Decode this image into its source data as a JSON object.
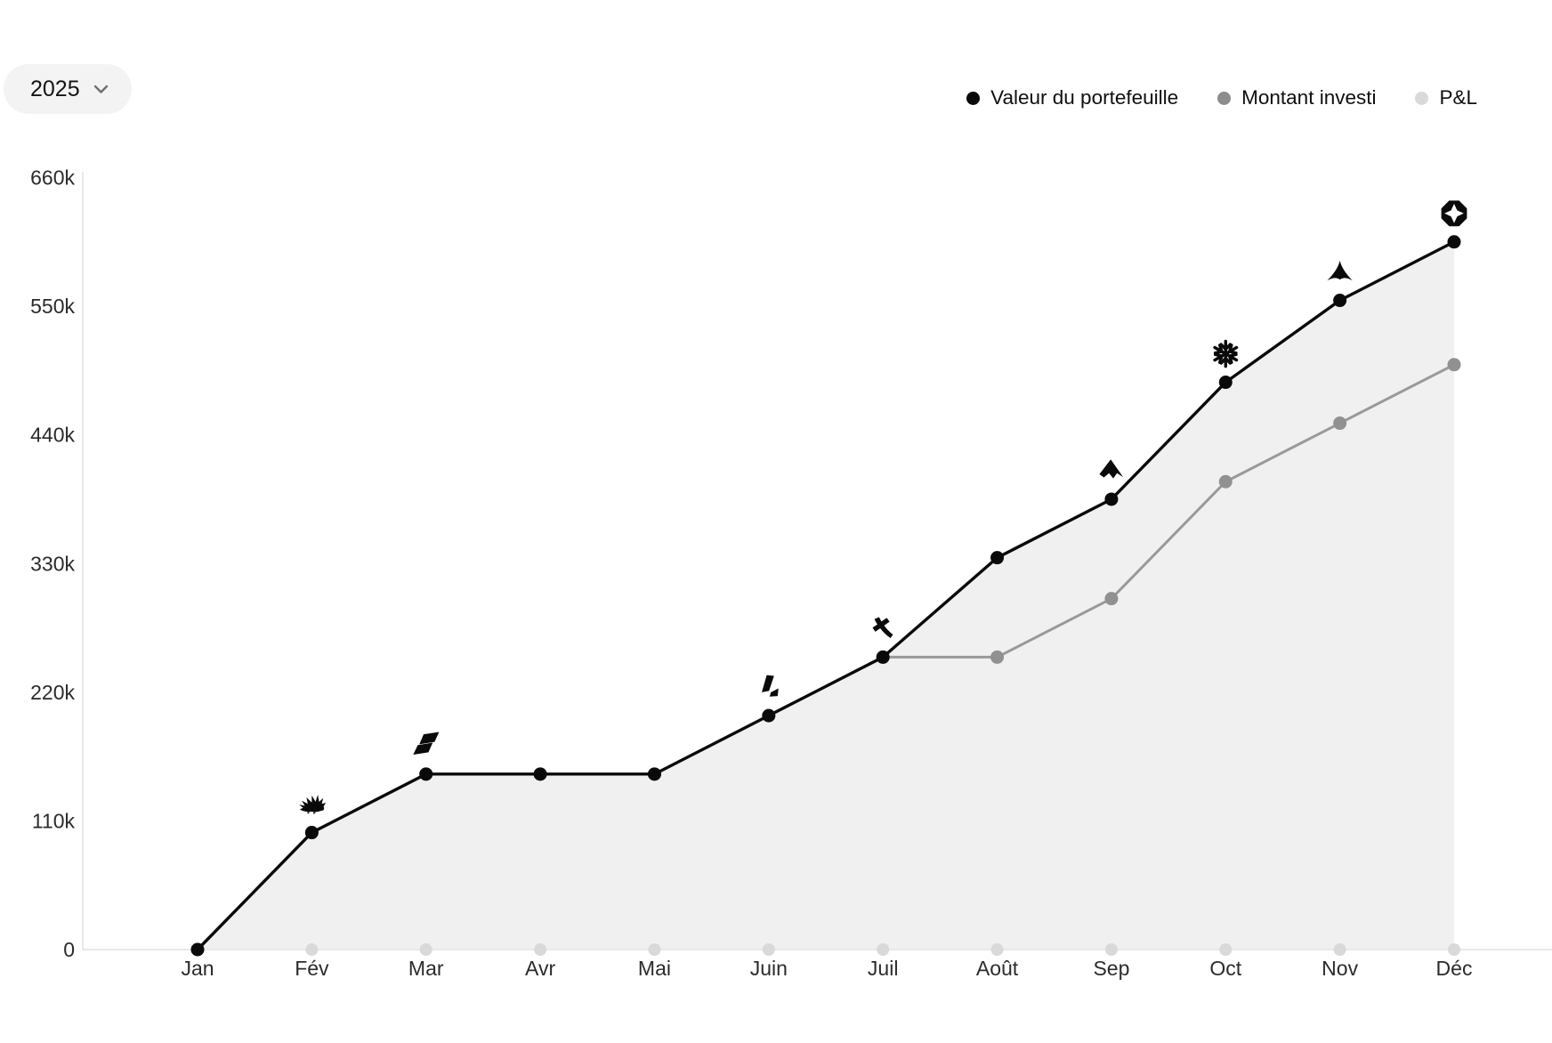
{
  "year_selector": {
    "label": "2025"
  },
  "legend": [
    {
      "label": "Valeur du portefeuille",
      "color": "#0a0a0a"
    },
    {
      "label": "Montant investi",
      "color": "#8c8c8c"
    },
    {
      "label": "P&L",
      "color": "#d9d9d9"
    }
  ],
  "colors": {
    "background": "#ffffff",
    "axis": "#e8e8e8",
    "area_fill": "#f0f0f0",
    "tick_text": "#2b2b2b"
  },
  "chart_data": {
    "type": "line",
    "title": "",
    "xlabel": "",
    "ylabel": "",
    "categories": [
      "Jan",
      "Fév",
      "Mar",
      "Avr",
      "Mai",
      "Juin",
      "Juil",
      "Août",
      "Sep",
      "Oct",
      "Nov",
      "Déc"
    ],
    "series": [
      {
        "name": "Valeur du portefeuille",
        "color": "#0a0a0a",
        "style": "line+dots+area",
        "area_color": "#f0f0f0",
        "values": [
          0,
          100000,
          150000,
          150000,
          150000,
          200000,
          250000,
          335000,
          385000,
          485000,
          555000,
          605000
        ]
      },
      {
        "name": "Montant investi",
        "color": "#999999",
        "style": "line+dots",
        "values": [
          0,
          100000,
          150000,
          150000,
          150000,
          200000,
          250000,
          250000,
          300000,
          400000,
          450000,
          500000
        ]
      },
      {
        "name": "P&L",
        "color": "#d9d9d9",
        "style": "baseline-dots",
        "values": [
          0,
          0,
          0,
          0,
          0,
          0,
          0,
          0,
          0,
          0,
          0,
          0
        ]
      }
    ],
    "yticks": [
      {
        "value": 0,
        "label": "0"
      },
      {
        "value": 110000,
        "label": "110k"
      },
      {
        "value": 220000,
        "label": "220k"
      },
      {
        "value": 330000,
        "label": "330k"
      },
      {
        "value": 440000,
        "label": "440k"
      },
      {
        "value": 550000,
        "label": "550k"
      },
      {
        "value": 660000,
        "label": "660k"
      }
    ],
    "ylim": [
      0,
      660000
    ],
    "grid": "none",
    "legend_position": "top-right",
    "event_markers": [
      {
        "month": "Fév",
        "icon": "hedgehog-icon"
      },
      {
        "month": "Mar",
        "icon": "flag-icon"
      },
      {
        "month": "Juin",
        "icon": "boot-icon"
      },
      {
        "month": "Juil",
        "icon": "axe-icon"
      },
      {
        "month": "Sep",
        "icon": "mountain-flag-icon"
      },
      {
        "month": "Oct",
        "icon": "snowflake-icon"
      },
      {
        "month": "Nov",
        "icon": "jet-icon"
      },
      {
        "month": "Déc",
        "icon": "shutter-star-icon"
      }
    ]
  }
}
